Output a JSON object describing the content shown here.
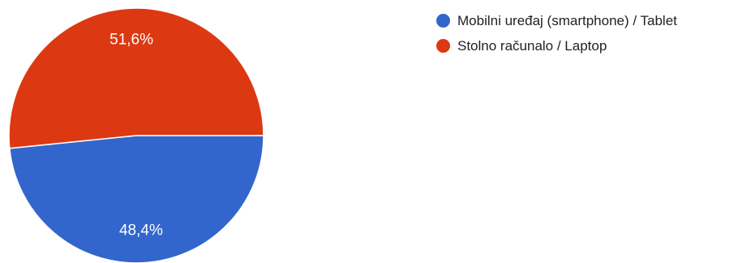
{
  "chart_data": {
    "type": "pie",
    "title": "",
    "categories": [
      "Mobilni uređaj (smartphone) / Tablet",
      "Stolno računalo / Laptop"
    ],
    "values": [
      48.4,
      51.6
    ],
    "labels": [
      "48,4%",
      "51,6%"
    ],
    "colors": [
      "#3366cc",
      "#dc3912"
    ],
    "legend_position": "top-right"
  }
}
